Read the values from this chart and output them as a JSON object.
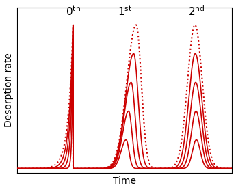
{
  "xlabel": "Time",
  "ylabel": "Desorption rate",
  "line_color": "#cc0000",
  "bg_color": "#ffffff",
  "n_curves": 5,
  "figsize": [
    3.45,
    2.78
  ],
  "dpi": 100,
  "label_0": "$0^{\\mathrm{th}}$",
  "label_1": "$1^{\\mathrm{st}}$",
  "label_2": "$2^{\\mathrm{nd}}$",
  "label_fontsize": 11,
  "axis_label_fontsize": 10
}
